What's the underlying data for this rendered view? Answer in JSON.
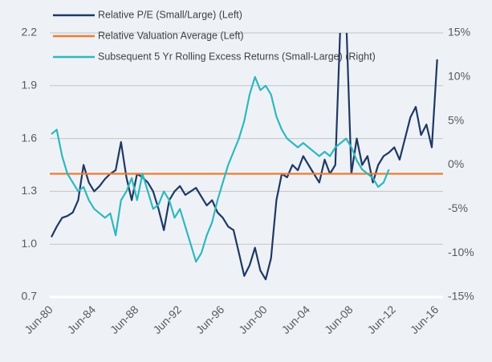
{
  "chart_data": {
    "type": "line",
    "x": [
      "1980-06",
      "1980-12",
      "1981-06",
      "1981-12",
      "1982-06",
      "1982-12",
      "1983-06",
      "1983-12",
      "1984-06",
      "1984-12",
      "1985-06",
      "1985-12",
      "1986-06",
      "1986-12",
      "1987-06",
      "1987-12",
      "1988-06",
      "1988-12",
      "1989-06",
      "1989-12",
      "1990-06",
      "1990-12",
      "1991-06",
      "1991-12",
      "1992-06",
      "1992-12",
      "1993-06",
      "1993-12",
      "1994-06",
      "1994-12",
      "1995-06",
      "1995-12",
      "1996-06",
      "1996-12",
      "1997-06",
      "1997-12",
      "1998-06",
      "1998-12",
      "1999-06",
      "1999-12",
      "2000-06",
      "2000-12",
      "2001-06",
      "2001-12",
      "2002-06",
      "2002-12",
      "2003-06",
      "2003-12",
      "2004-06",
      "2004-12",
      "2005-06",
      "2005-12",
      "2006-06",
      "2006-12",
      "2007-06",
      "2007-12",
      "2008-06",
      "2008-12",
      "2009-06",
      "2009-12",
      "2010-06",
      "2010-12",
      "2011-06",
      "2011-12",
      "2012-06",
      "2012-12",
      "2013-06",
      "2013-12",
      "2014-06",
      "2014-12",
      "2015-06",
      "2015-12",
      "2016-06"
    ],
    "series": [
      {
        "name": "Relative P/E (Small/Large) (Left)",
        "color": "#1f3864",
        "values": [
          1.04,
          1.1,
          1.15,
          1.16,
          1.18,
          1.25,
          1.45,
          1.35,
          1.3,
          1.33,
          1.37,
          1.4,
          1.42,
          1.58,
          1.38,
          1.25,
          1.4,
          1.38,
          1.35,
          1.3,
          1.2,
          1.08,
          1.25,
          1.3,
          1.33,
          1.28,
          1.3,
          1.32,
          1.27,
          1.22,
          1.25,
          1.18,
          1.15,
          1.1,
          1.08,
          0.95,
          0.82,
          0.88,
          0.98,
          0.85,
          0.8,
          0.92,
          1.25,
          1.4,
          1.38,
          1.45,
          1.42,
          1.5,
          1.45,
          1.4,
          1.35,
          1.48,
          1.4,
          1.45,
          2.3,
          2.3,
          1.4,
          1.6,
          1.45,
          1.5,
          1.35,
          1.45,
          1.5,
          1.52,
          1.55,
          1.48,
          1.6,
          1.72,
          1.78,
          1.62,
          1.68,
          1.55,
          2.05
        ]
      },
      {
        "name": "Relative Valuation Average (Left)",
        "color": "#ed7d31",
        "value": 1.4
      },
      {
        "name": "Subsequent 5 Yr Rolling Excess Returns (Small-Large) (Right)",
        "color": "#2fb8bd",
        "axis": "y2",
        "values": [
          3.5,
          4.0,
          1.0,
          -1.0,
          -2.0,
          -3.0,
          -2.5,
          -4.0,
          -5.0,
          -5.5,
          -6.0,
          -5.5,
          -8.0,
          -4.0,
          -3.0,
          -1.5,
          -4.0,
          -1.0,
          -3.0,
          -5.0,
          -4.5,
          -3.0,
          -4.0,
          -6.0,
          -5.0,
          -7.0,
          -9.0,
          -11.0,
          -10.0,
          -8.0,
          -6.5,
          -4.0,
          -2.0,
          0.0,
          1.5,
          3.0,
          5.0,
          8.0,
          10.0,
          8.5,
          9.0,
          8.0,
          5.5,
          4.0,
          3.0,
          2.5,
          2.0,
          2.5,
          2.0,
          1.5,
          1.0,
          1.5,
          1.0,
          2.0,
          2.5,
          3.0,
          2.0,
          0.5,
          -0.5,
          -1.0,
          -1.5,
          -2.5,
          -2.0,
          -0.5,
          null,
          null,
          null,
          null,
          null,
          null,
          null,
          null,
          null
        ]
      }
    ],
    "xlim": [
      "1980-06",
      "2016-09"
    ],
    "xticks": [
      {
        "value": "1980-06",
        "label": "Jun-80"
      },
      {
        "value": "1984-06",
        "label": "Jun-84"
      },
      {
        "value": "1988-06",
        "label": "Jun-88"
      },
      {
        "value": "1992-06",
        "label": "Jun-92"
      },
      {
        "value": "1996-06",
        "label": "Jun-96"
      },
      {
        "value": "2000-06",
        "label": "Jun-00"
      },
      {
        "value": "2004-06",
        "label": "Jun-04"
      },
      {
        "value": "2008-06",
        "label": "Jun-08"
      },
      {
        "value": "2012-06",
        "label": "Jun-12"
      },
      {
        "value": "2016-06",
        "label": "Jun-16"
      }
    ],
    "ylim": [
      0.7,
      2.2
    ],
    "yticks": [
      0.7,
      {
        "value": 1,
        "label": "1.0"
      },
      1.3,
      1.6,
      1.9,
      2.2
    ],
    "y2lim": [
      -15,
      15
    ],
    "y2ticks": [
      {
        "value": -15,
        "label": "-15%"
      },
      {
        "value": -10,
        "label": "-10%"
      },
      {
        "value": -5,
        "label": "-5%"
      },
      {
        "value": 0,
        "label": "0%"
      },
      {
        "value": 5,
        "label": "5%"
      },
      {
        "value": 10,
        "label": "10%"
      },
      {
        "value": 15,
        "label": "15%"
      }
    ],
    "grid": true,
    "legend": "top-left"
  }
}
